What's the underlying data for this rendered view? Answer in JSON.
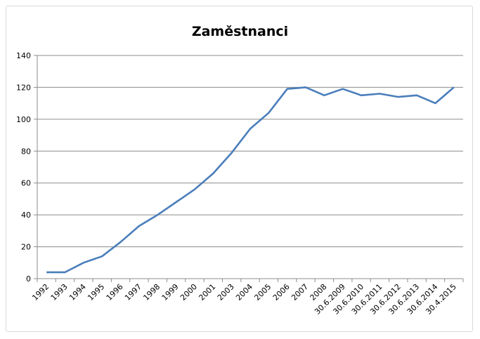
{
  "chart_data": {
    "type": "line",
    "title": "Zaměstnanci",
    "xlabel": "",
    "ylabel": "",
    "ylim": [
      0,
      140
    ],
    "yticks": [
      0,
      20,
      40,
      60,
      80,
      100,
      120,
      140
    ],
    "grid": true,
    "legend": "none",
    "line_color": "#4a7ebb",
    "categories": [
      "1992",
      "1993",
      "1994",
      "1995",
      "1996",
      "1997",
      "1998",
      "1999",
      "2000",
      "2001",
      "2003",
      "2004",
      "2005",
      "2006",
      "2007",
      "2008",
      "30.6.2009",
      "30.6.2010",
      "30.6.2011",
      "30.6.2012",
      "30.6.2013",
      "30.6.2014",
      "30.4.2015"
    ],
    "values": [
      4,
      4,
      10,
      14,
      23,
      33,
      40,
      48,
      56,
      66,
      79,
      94,
      104,
      119,
      120,
      115,
      119,
      115,
      116,
      114,
      115,
      110,
      120
    ]
  }
}
